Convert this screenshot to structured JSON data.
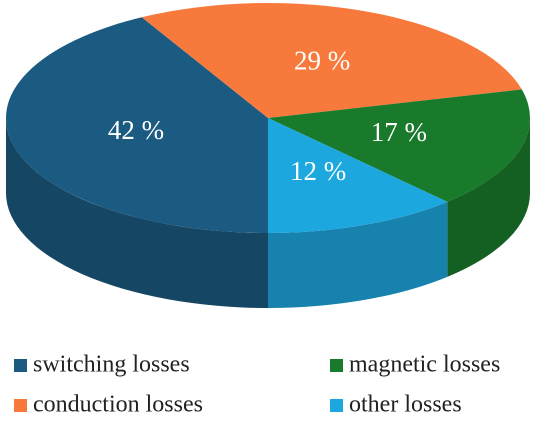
{
  "chart_data": {
    "type": "pie",
    "categories": [
      "switching losses",
      "conduction losses",
      "magnetic losses",
      "other losses"
    ],
    "values": [
      42,
      29,
      17,
      12
    ],
    "value_labels": [
      "42 %",
      "29 %",
      "17 %",
      "12 %"
    ],
    "colors": [
      "#1b5b82",
      "#f77a3c",
      "#1a7a2c",
      "#1ca7de"
    ]
  }
}
